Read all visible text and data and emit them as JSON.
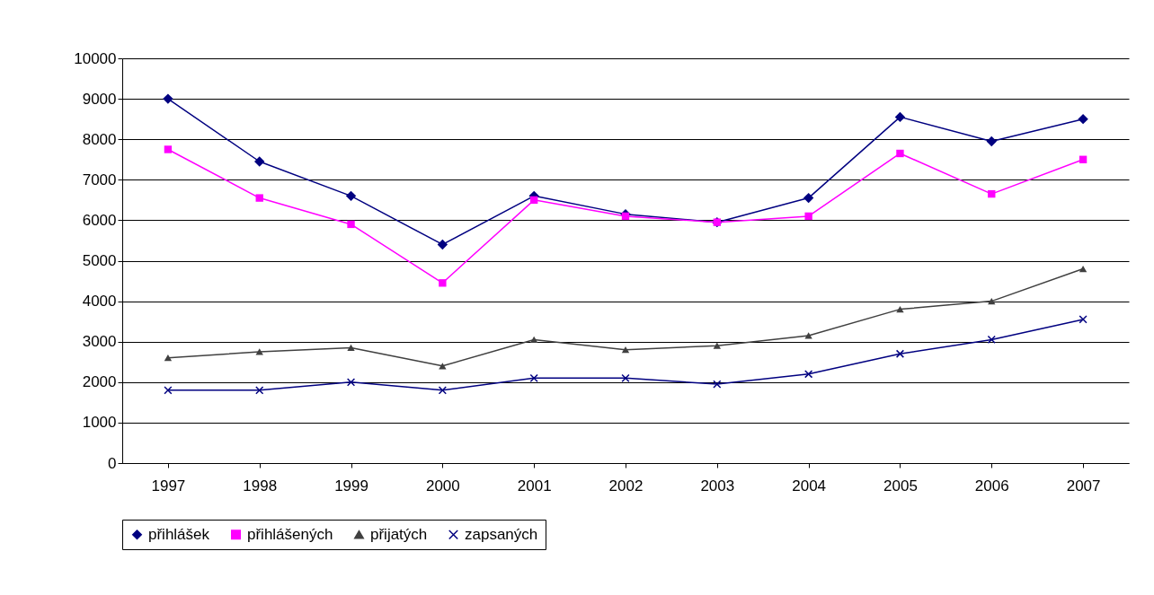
{
  "chart_data": {
    "type": "line",
    "categories": [
      "1997",
      "1998",
      "1999",
      "2000",
      "2001",
      "2002",
      "2003",
      "2004",
      "2005",
      "2006",
      "2007"
    ],
    "series": [
      {
        "name": "přihlášek",
        "color": "#000080",
        "marker": "diamond",
        "values": [
          9000,
          7450,
          6600,
          5400,
          6600,
          6150,
          5950,
          6550,
          8550,
          7950,
          8500
        ]
      },
      {
        "name": "přihlášených",
        "color": "#ff00ff",
        "marker": "square",
        "values": [
          7750,
          6550,
          5900,
          4450,
          6500,
          6100,
          5950,
          6100,
          7650,
          6650,
          7500
        ]
      },
      {
        "name": "přijatých",
        "color": "#404040",
        "marker": "triangle",
        "values": [
          2600,
          2750,
          2850,
          2400,
          3050,
          2800,
          2900,
          3150,
          3800,
          4000,
          4800
        ]
      },
      {
        "name": "zapsaných",
        "color": "#000080",
        "marker": "cross",
        "values": [
          1800,
          1800,
          2000,
          1800,
          2100,
          2100,
          1950,
          2200,
          2700,
          3050,
          3550
        ]
      }
    ],
    "ylim": [
      0,
      10000
    ],
    "yticks": [
      0,
      1000,
      2000,
      3000,
      4000,
      5000,
      6000,
      7000,
      8000,
      9000,
      10000
    ],
    "grid": "y",
    "legend": "bottom",
    "line_style": "solid"
  }
}
